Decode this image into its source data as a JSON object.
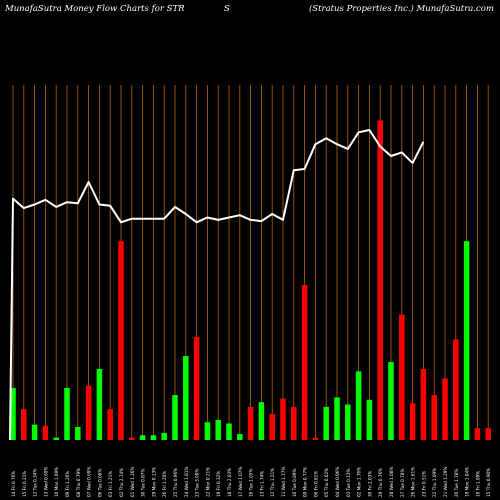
{
  "header": {
    "title_left": "MunafaSutra  Money Flow  Charts for STR",
    "title_mid": "S",
    "title_right": "(Stratus Properties Inc.) MunafaSutra.com"
  },
  "colors": {
    "background": "#000000",
    "up_bar": "#00ff00",
    "down_bar": "#ff0000",
    "gridline": "#b8650f",
    "line": "#ffffff",
    "label": "#ffffff"
  },
  "chart_data": {
    "type": "bar",
    "categories": [
      "14 Fri 0.76%",
      "15 Fri 0.21%",
      "12 Tue 0.34%",
      "13 Wed 0.69%",
      "10 Mon 1.09%",
      "09 Fri 1.26%",
      "08 Thu 0.79%",
      "07 Wed 0.69%",
      "06 Tue 0.08%",
      "03 Fri 1.21%",
      "02 Thu 2.74%",
      "01 Wed 1.26%",
      "30 Tue 0.87%",
      "29 Mon 0.13%",
      "26 Fri 1.20%",
      "25 Thu 0.96%",
      "24 Wed 1.81%",
      "23 Tue 3.00%",
      "22 Mon 0.21%",
      "19 Fri 0.32%",
      "18 Thu 2.03%",
      "17 Wed 1.07%",
      "16 Tue 1.05%",
      "13 Fri 1.74%",
      "12 Thu 1.21%",
      "11 Wed 1.77%",
      "10 Tue 0.89%",
      "09 Mon 0.77%",
      "06 Fri 0.81%",
      "05 Thu 0.02%",
      "04 Wed 0.96%",
      "03 Tue 0.13%",
      "02 Mon 1.76%",
      "30 Fri 2.03%",
      "29 Thu 0.76%",
      "28 Wed 1.08%",
      "27 Tue 0.78%",
      "26 Mon 1.61%",
      "23 Fri 0.51%",
      "22 Thu 1.09%",
      "21 Wed 1.29%",
      "20 Tue 1.78%",
      "19 Mon 1.04%",
      "16 Fri 1.09%",
      "15 Thu 0.90%"
    ],
    "up": [
      true,
      false,
      true,
      false,
      true,
      true,
      true,
      false,
      true,
      false,
      false,
      false,
      true,
      true,
      true,
      true,
      true,
      false,
      true,
      true,
      true,
      true,
      false,
      true,
      false,
      false,
      false,
      false,
      false,
      true,
      true,
      true,
      true,
      true,
      false,
      true,
      false,
      false,
      false,
      false,
      false,
      false,
      true,
      false,
      false
    ],
    "values": [
      44,
      26,
      13,
      12,
      2,
      44,
      11,
      46,
      60,
      26,
      168,
      2,
      4,
      4,
      6,
      38,
      71,
      87,
      15,
      17,
      14,
      5,
      28,
      32,
      22,
      35,
      28,
      131,
      2,
      28,
      36,
      30,
      58,
      34,
      270,
      66,
      106,
      31,
      60,
      38,
      52,
      85,
      168,
      10,
      10
    ],
    "money_flow_line": [
      204,
      196,
      199,
      203,
      197,
      201,
      200,
      218,
      199,
      198,
      184,
      187,
      187,
      187,
      187,
      197,
      191,
      184,
      188,
      186,
      188,
      190,
      186,
      185,
      191,
      186,
      228,
      229,
      250,
      255,
      250,
      246,
      260,
      262,
      248,
      240,
      243,
      234,
      252
    ],
    "line_start_index": 0,
    "ylim": [
      0,
      300
    ],
    "title": "",
    "xlabel": "",
    "ylabel": "",
    "grid": true
  }
}
